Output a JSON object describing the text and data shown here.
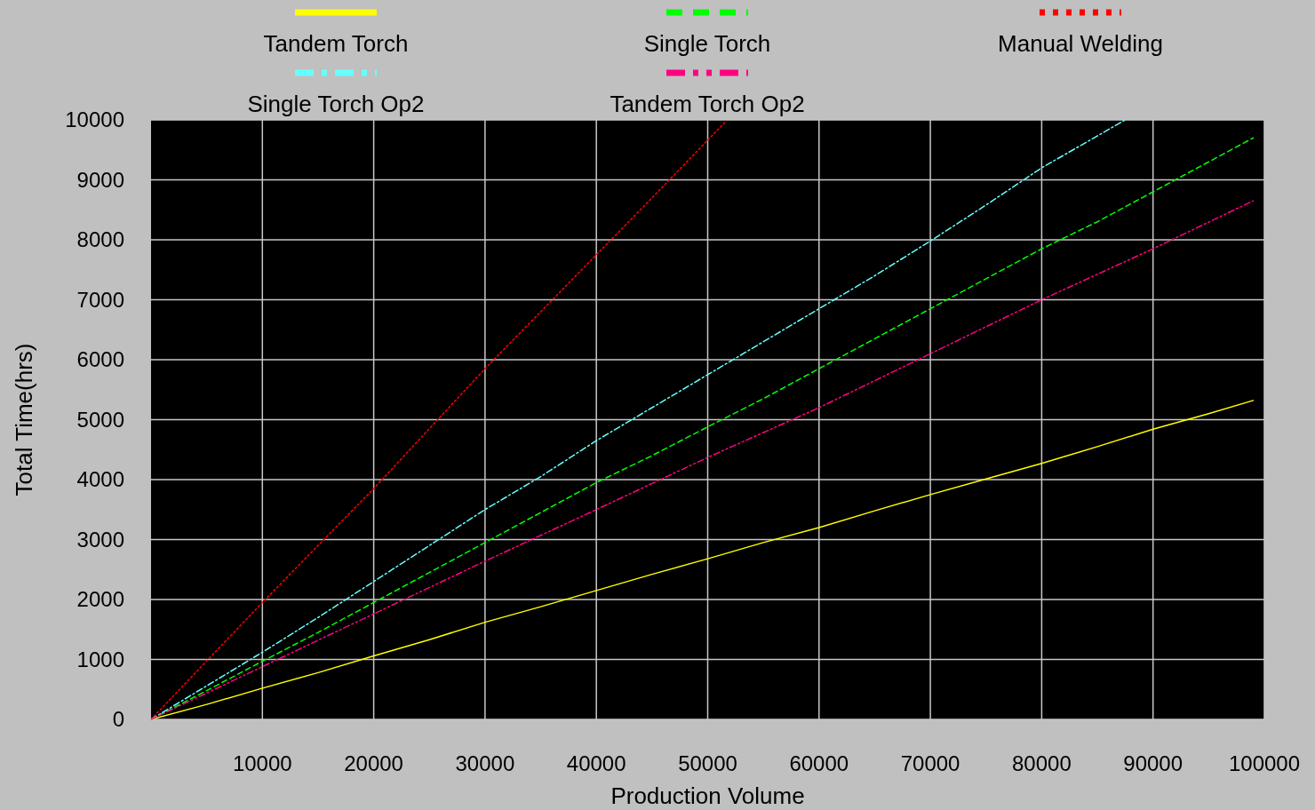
{
  "chart_data": {
    "type": "line",
    "xlabel": "Production Volume",
    "ylabel": "Total Time(hrs)",
    "xlim": [
      0,
      100000
    ],
    "ylim": [
      0,
      10000
    ],
    "xticks": [
      10000,
      20000,
      30000,
      40000,
      50000,
      60000,
      70000,
      80000,
      90000,
      100000
    ],
    "yticks": [
      0,
      1000,
      2000,
      3000,
      4000,
      5000,
      6000,
      7000,
      8000,
      9000,
      10000
    ],
    "grid": true,
    "legend": "top",
    "marker": "none",
    "series": [
      {
        "name": "Tandem Torch",
        "color": "#ffff00",
        "line_style": "solid",
        "x": [
          0,
          5000,
          10000,
          15000,
          20000,
          25000,
          30000,
          35000,
          40000,
          45000,
          50000,
          55000,
          60000,
          65000,
          70000,
          75000,
          80000,
          85000,
          90000,
          95000,
          99000
        ],
        "values": [
          0,
          250,
          520,
          780,
          1060,
          1330,
          1620,
          1880,
          2150,
          2420,
          2680,
          2950,
          3200,
          3480,
          3750,
          4010,
          4270,
          4550,
          4840,
          5100,
          5320
        ]
      },
      {
        "name": "Single Torch",
        "color": "#00ff00",
        "line_style": "dashed",
        "x": [
          0,
          5000,
          10000,
          15000,
          20000,
          25000,
          30000,
          35000,
          40000,
          45000,
          50000,
          55000,
          60000,
          65000,
          70000,
          75000,
          80000,
          85000,
          90000,
          95000,
          99000
        ],
        "values": [
          0,
          480,
          970,
          1450,
          1950,
          2450,
          2950,
          3450,
          3950,
          4400,
          4880,
          5350,
          5850,
          6350,
          6850,
          7350,
          7850,
          8300,
          8800,
          9300,
          9700
        ]
      },
      {
        "name": "Manual Welding",
        "color": "#ff0000",
        "line_style": "dotted",
        "x": [
          0,
          10000,
          20000,
          30000,
          40000,
          45000,
          51500
        ],
        "values": [
          0,
          1950,
          3850,
          5850,
          7750,
          8700,
          9950
        ]
      },
      {
        "name": "Single Torch Op2",
        "color": "#66ffff",
        "line_style": "dashdot",
        "x": [
          0,
          5000,
          10000,
          15000,
          20000,
          25000,
          30000,
          35000,
          40000,
          45000,
          50000,
          55000,
          60000,
          65000,
          70000,
          75000,
          80000,
          87500
        ],
        "values": [
          0,
          560,
          1120,
          1700,
          2300,
          2900,
          3500,
          4050,
          4650,
          5200,
          5750,
          6300,
          6850,
          7400,
          7980,
          8580,
          9200,
          10000
        ]
      },
      {
        "name": "Tandem Torch Op2",
        "color": "#ff0080",
        "line_style": "dashdotdot",
        "x": [
          0,
          10000,
          20000,
          30000,
          40000,
          50000,
          60000,
          70000,
          80000,
          90000,
          99000
        ],
        "values": [
          0,
          880,
          1760,
          2640,
          3500,
          4370,
          5200,
          6100,
          7000,
          7850,
          8650
        ]
      }
    ]
  }
}
